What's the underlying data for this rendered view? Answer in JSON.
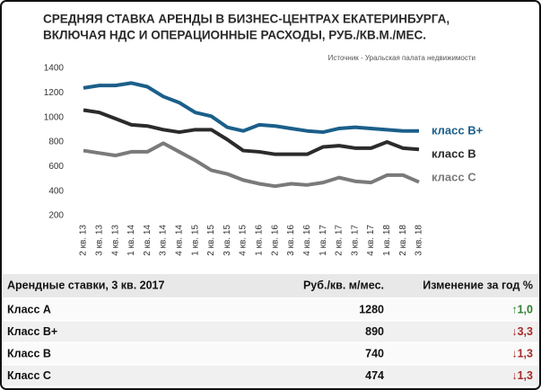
{
  "chart_data": {
    "type": "line",
    "title": [
      "СРЕДНЯЯ СТАВКА АРЕНДЫ В БИЗНЕС-ЦЕНТРАХ ЕКАТЕРИНБУРГА,",
      "ВКЛЮЧАЯ НДС И ОПЕРАЦИОННЫЕ РАСХОДЫ, РУБ./КВ.М./МЕС."
    ],
    "source": "Источник - Уральская палата недвижимости",
    "categories": [
      "2 кв. 13",
      "3 кв. 13",
      "4 кв. 13",
      "1 кв. 14",
      "2 кв. 14",
      "3 кв. 14",
      "4 кв. 14",
      "1 кв. 15",
      "2 кв. 15",
      "3 кв. 15",
      "4 кв. 15",
      "1 кв. 16",
      "2 кв. 16",
      "3 кв. 16",
      "4 кв. 16",
      "1 кв. 17",
      "2 кв. 17",
      "3 кв. 17",
      "4 кв. 17",
      "1 кв. 18",
      "2 кв. 18",
      "3 кв. 18"
    ],
    "series": [
      {
        "name": "класс В+",
        "color": "#1b5f8a",
        "values": [
          1240,
          1260,
          1260,
          1280,
          1250,
          1170,
          1120,
          1040,
          1010,
          920,
          890,
          940,
          930,
          910,
          890,
          880,
          910,
          920,
          910,
          900,
          890,
          890
        ]
      },
      {
        "name": "класс В",
        "color": "#2b2b2b",
        "values": [
          1060,
          1040,
          990,
          940,
          930,
          900,
          880,
          900,
          900,
          820,
          730,
          720,
          700,
          700,
          700,
          760,
          770,
          750,
          750,
          800,
          750,
          740
        ]
      },
      {
        "name": "класс С",
        "color": "#7a7a7a",
        "values": [
          730,
          710,
          690,
          720,
          720,
          790,
          720,
          650,
          570,
          540,
          490,
          460,
          440,
          460,
          450,
          470,
          510,
          480,
          470,
          530,
          530,
          474
        ]
      }
    ],
    "ylim": [
      200,
      1400
    ],
    "yticks": [
      200,
      400,
      600,
      800,
      1000,
      1200,
      1400
    ],
    "grid": false
  },
  "table": {
    "header": [
      "Арендные ставки, 3 кв. 2017",
      "Руб./кв. м/мес.",
      "Изменение за год %"
    ],
    "rows": [
      {
        "name": "Класс А",
        "value": "1280",
        "change": "↑1,0",
        "color": "#2e7d32"
      },
      {
        "name": "Класс В+",
        "value": "890",
        "change": "↓3,3",
        "color": "#a52a2a"
      },
      {
        "name": "Класс В",
        "value": "740",
        "change": "↓1,3",
        "color": "#a52a2a"
      },
      {
        "name": "Класс С",
        "value": "474",
        "change": "↓1,3",
        "color": "#a52a2a"
      }
    ]
  }
}
